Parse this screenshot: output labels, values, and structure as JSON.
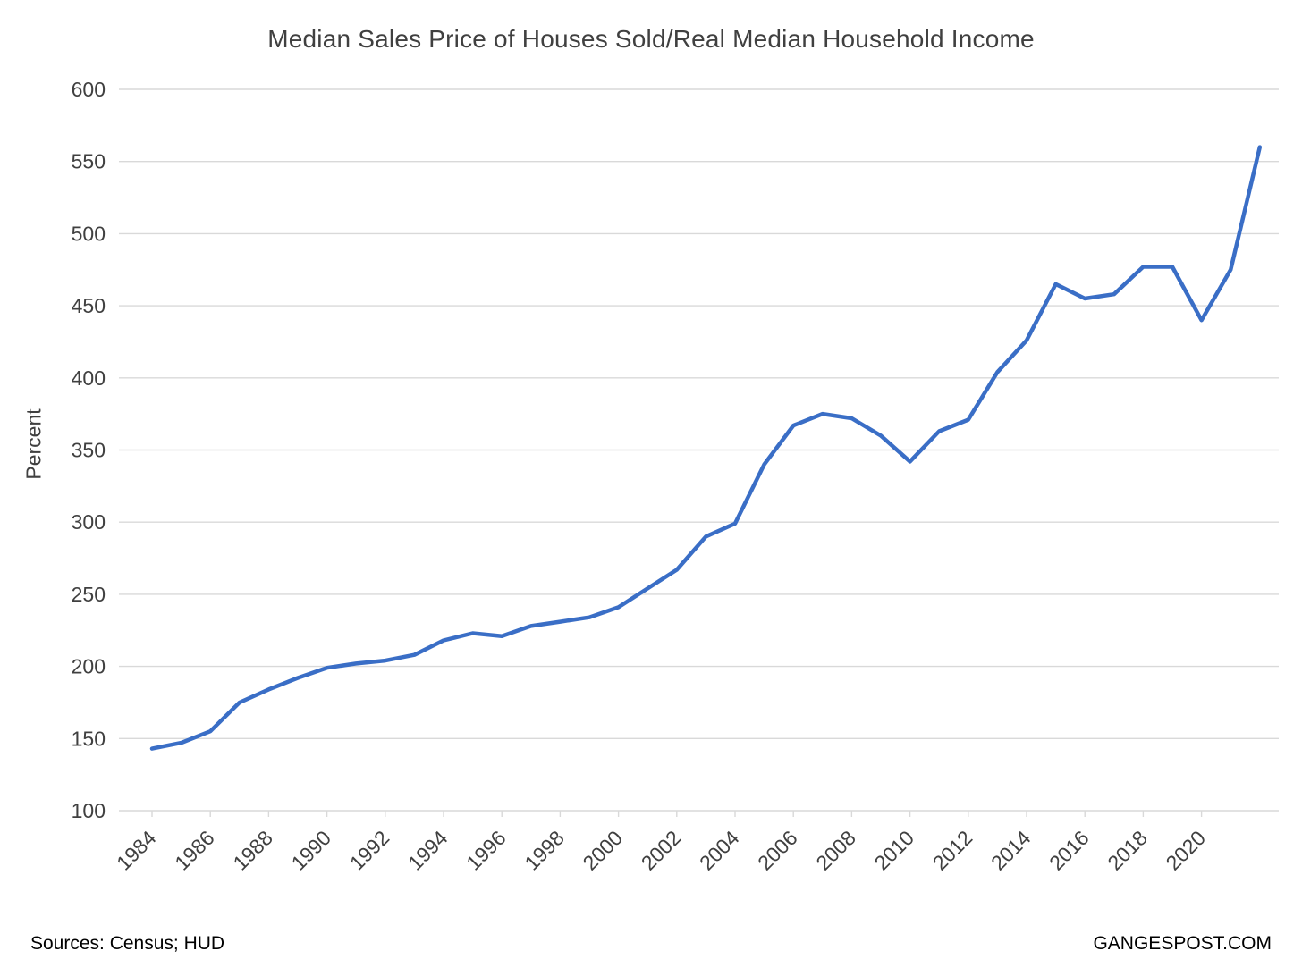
{
  "chart_data": {
    "type": "line",
    "title": "Median Sales Price of Houses Sold/Real Median Household Income",
    "ylabel": "Percent",
    "ylim": [
      100,
      600
    ],
    "ytick_step": 50,
    "x": [
      1984,
      1985,
      1986,
      1987,
      1988,
      1989,
      1990,
      1991,
      1992,
      1993,
      1994,
      1995,
      1996,
      1997,
      1998,
      1999,
      2000,
      2001,
      2002,
      2003,
      2004,
      2005,
      2006,
      2007,
      2008,
      2009,
      2010,
      2011,
      2012,
      2013,
      2014,
      2015,
      2016,
      2017,
      2018,
      2019,
      2020,
      2021,
      2022
    ],
    "values": [
      143,
      147,
      155,
      175,
      184,
      192,
      199,
      202,
      204,
      208,
      218,
      223,
      221,
      228,
      231,
      234,
      241,
      254,
      267,
      290,
      299,
      340,
      367,
      375,
      372,
      360,
      342,
      363,
      371,
      404,
      426,
      465,
      455,
      458,
      477,
      477,
      440,
      475,
      560
    ],
    "xtick_labels": [
      "1984",
      "1986",
      "1988",
      "1990",
      "1992",
      "1994",
      "1996",
      "1998",
      "2000",
      "2002",
      "2004",
      "2006",
      "2008",
      "2010",
      "2012",
      "2014",
      "2016",
      "2018",
      "2020"
    ],
    "line_color": "#3a6ec6",
    "grid_color": "#d9d9d9",
    "legend_position": "none",
    "grid": "horizontal-only"
  },
  "footer": {
    "sources": "Sources: Census; HUD",
    "watermark": "GANGESPOST.COM"
  }
}
